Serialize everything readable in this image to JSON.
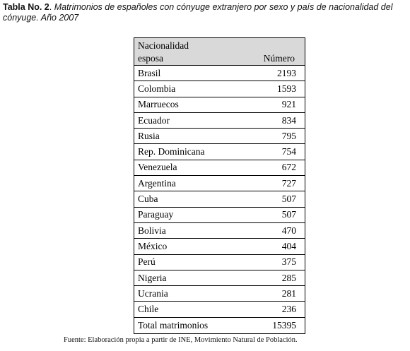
{
  "caption": {
    "label": "Tabla No. 2",
    "title": "Matrimonios de españoles con cónyuge extranjero por sexo y país de nacionalidad del cónyuge. Año 2007"
  },
  "table": {
    "header": {
      "col1_line1": "Nacionalidad",
      "col1_line2": "esposa",
      "col2": "Número"
    },
    "rows": [
      {
        "country": "Brasil",
        "value": "2193"
      },
      {
        "country": "Colombia",
        "value": "1593"
      },
      {
        "country": "Marruecos",
        "value": "921"
      },
      {
        "country": "Ecuador",
        "value": "834"
      },
      {
        "country": "Rusia",
        "value": "795"
      },
      {
        "country": "Rep. Dominicana",
        "value": "754"
      },
      {
        "country": "Venezuela",
        "value": "672"
      },
      {
        "country": "Argentina",
        "value": "727"
      },
      {
        "country": "Cuba",
        "value": "507"
      },
      {
        "country": "Paraguay",
        "value": "507"
      },
      {
        "country": "Bolivia",
        "value": "470"
      },
      {
        "country": "México",
        "value": "404"
      },
      {
        "country": "Perú",
        "value": "375"
      },
      {
        "country": "Nigeria",
        "value": "285"
      },
      {
        "country": "Ucrania",
        "value": "281"
      },
      {
        "country": "Chile",
        "value": "236"
      },
      {
        "country": "Total matrimonios",
        "value": "15395"
      }
    ]
  },
  "source": "Fuente: Elaboración propia a partir de INE, Movimiento Natural de Población."
}
